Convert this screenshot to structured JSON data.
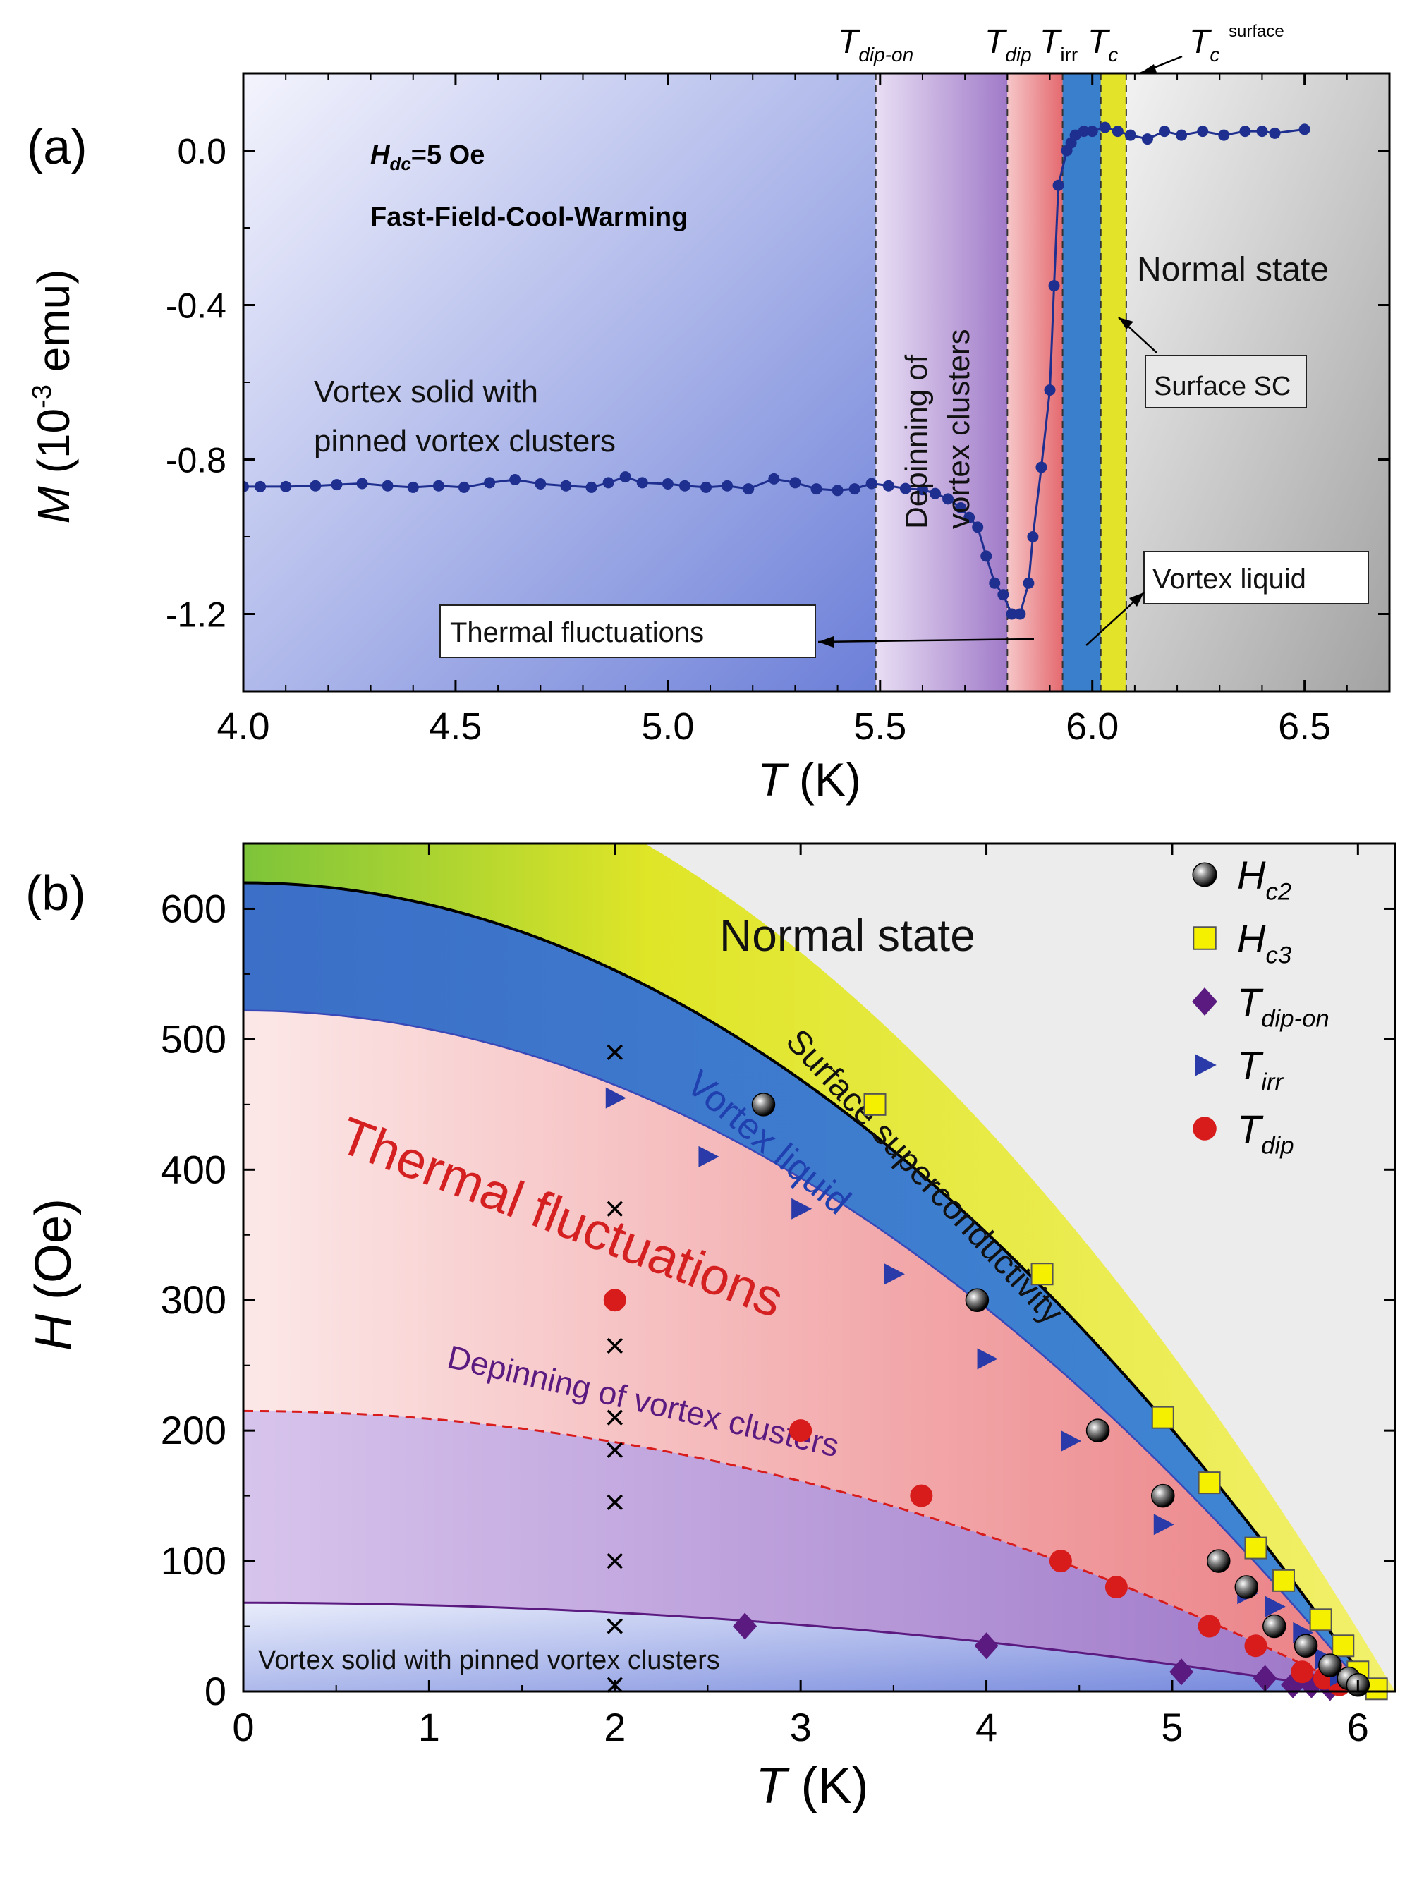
{
  "figure": {
    "colors": {
      "axis": "#000000",
      "series_blue": "#1f2f8f",
      "solid_region": "#6f80d8",
      "depin_region": "#a884cc",
      "thermal_region": "#ef9a9a",
      "liquid_region": "#3a7fcc",
      "surface_region": "#e3e32a",
      "normal_region": "#a9a9a9",
      "normal_bg_b": "#ececec",
      "red_marker": "#d81b1b",
      "purple_marker": "#5b1a80",
      "blue_marker": "#2a3aa8",
      "yellow_marker": "#f5f000",
      "label_red": "#d42020",
      "label_blue": "#2040b0",
      "label_purple": "#5b1a80"
    }
  },
  "chart_data": [
    {
      "type": "scatter",
      "panel_label": "(a)",
      "xlabel": "T",
      "xlabel_unit": "(K)",
      "ylabel": "M",
      "ylabel_unit_pre": "(10",
      "ylabel_unit_exp": "-3",
      "ylabel_unit_post": " emu)",
      "xlim": [
        4.0,
        6.7
      ],
      "ylim": [
        -1.4,
        0.2
      ],
      "xticks": [
        {
          "v": 4.0,
          "label": "4.0"
        },
        {
          "v": 4.5,
          "label": "4.5"
        },
        {
          "v": 5.0,
          "label": "5.0"
        },
        {
          "v": 5.5,
          "label": "5.5"
        },
        {
          "v": 6.0,
          "label": "6.0"
        },
        {
          "v": 6.5,
          "label": "6.5"
        }
      ],
      "yticks": [
        {
          "v": 0.0,
          "label": "0.0"
        },
        {
          "v": -0.4,
          "label": "-0.4"
        },
        {
          "v": -0.8,
          "label": "-0.8"
        },
        {
          "v": -1.2,
          "label": "-1.2"
        }
      ],
      "condition_h_main": "H",
      "condition_h_sub": "dc",
      "condition_h_rest": "=5 Oe",
      "condition_protocol": "Fast-Field-Cool-Warming",
      "region_boundaries": {
        "t_dip_on": 5.49,
        "t_dip": 5.8,
        "t_irr": 5.93,
        "t_c": 6.02,
        "t_c_surface": 6.08
      },
      "top_labels": {
        "t_dip_on_main": "T",
        "t_dip_on_sub": "dip-on",
        "t_dip_main": "T",
        "t_dip_sub": "dip",
        "t_irr_main": "T",
        "t_irr_sub": "irr",
        "t_c_main": "T",
        "t_c_sub": "c",
        "t_c_surface_main": "T",
        "t_c_surface_sub": "c",
        "t_c_surface_sup": "surface"
      },
      "annotations": {
        "vortex_solid_line1": "Vortex solid with",
        "vortex_solid_line2": "pinned vortex clusters",
        "depinning_line1": "Depinning of",
        "depinning_line2": "vortex clusters",
        "normal_state": "Normal state",
        "surface_sc": "Surface SC",
        "thermal_fluctuations": "Thermal fluctuations",
        "vortex_liquid": "Vortex liquid"
      },
      "series": [
        {
          "name": "M(T)",
          "points": [
            [
              4.0,
              -0.87
            ],
            [
              4.04,
              -0.87
            ],
            [
              4.1,
              -0.87
            ],
            [
              4.17,
              -0.868
            ],
            [
              4.22,
              -0.865
            ],
            [
              4.28,
              -0.862
            ],
            [
              4.34,
              -0.868
            ],
            [
              4.4,
              -0.872
            ],
            [
              4.46,
              -0.868
            ],
            [
              4.52,
              -0.872
            ],
            [
              4.58,
              -0.86
            ],
            [
              4.64,
              -0.852
            ],
            [
              4.7,
              -0.863
            ],
            [
              4.76,
              -0.868
            ],
            [
              4.82,
              -0.872
            ],
            [
              4.86,
              -0.86
            ],
            [
              4.9,
              -0.845
            ],
            [
              4.94,
              -0.86
            ],
            [
              5.0,
              -0.863
            ],
            [
              5.04,
              -0.868
            ],
            [
              5.09,
              -0.872
            ],
            [
              5.14,
              -0.868
            ],
            [
              5.19,
              -0.876
            ],
            [
              5.25,
              -0.85
            ],
            [
              5.3,
              -0.86
            ],
            [
              5.35,
              -0.876
            ],
            [
              5.4,
              -0.88
            ],
            [
              5.44,
              -0.876
            ],
            [
              5.48,
              -0.862
            ],
            [
              5.52,
              -0.868
            ],
            [
              5.56,
              -0.875
            ],
            [
              5.6,
              -0.878
            ],
            [
              5.63,
              -0.888
            ],
            [
              5.66,
              -0.902
            ],
            [
              5.69,
              -0.925
            ],
            [
              5.71,
              -0.95
            ],
            [
              5.73,
              -0.975
            ],
            [
              5.75,
              -1.05
            ],
            [
              5.77,
              -1.12
            ],
            [
              5.79,
              -1.15
            ],
            [
              5.81,
              -1.2
            ],
            [
              5.83,
              -1.2
            ],
            [
              5.85,
              -1.12
            ],
            [
              5.86,
              -1.0
            ],
            [
              5.88,
              -0.82
            ],
            [
              5.9,
              -0.62
            ],
            [
              5.91,
              -0.35
            ],
            [
              5.92,
              -0.09
            ],
            [
              5.94,
              0.0
            ],
            [
              5.95,
              0.02
            ],
            [
              5.96,
              0.04
            ],
            [
              5.98,
              0.05
            ],
            [
              6.0,
              0.05
            ],
            [
              6.03,
              0.06
            ],
            [
              6.06,
              0.05
            ],
            [
              6.09,
              0.04
            ],
            [
              6.13,
              0.03
            ],
            [
              6.17,
              0.05
            ],
            [
              6.21,
              0.04
            ],
            [
              6.26,
              0.05
            ],
            [
              6.31,
              0.04
            ],
            [
              6.36,
              0.05
            ],
            [
              6.4,
              0.05
            ],
            [
              6.43,
              0.045
            ],
            [
              6.5,
              0.055
            ]
          ]
        }
      ]
    },
    {
      "type": "scatter",
      "panel_label": "(b)",
      "xlabel": "T",
      "xlabel_unit": "(K)",
      "ylabel": "H",
      "ylabel_unit": "(Oe)",
      "xlim": [
        0,
        6.2
      ],
      "ylim": [
        0,
        650
      ],
      "xticks": [
        {
          "v": 0,
          "label": "0"
        },
        {
          "v": 1,
          "label": "1"
        },
        {
          "v": 2,
          "label": "2"
        },
        {
          "v": 3,
          "label": "3"
        },
        {
          "v": 4,
          "label": "4"
        },
        {
          "v": 5,
          "label": "5"
        },
        {
          "v": 6,
          "label": "6"
        }
      ],
      "yticks": [
        {
          "v": 0,
          "label": "0"
        },
        {
          "v": 100,
          "label": "100"
        },
        {
          "v": 200,
          "label": "200"
        },
        {
          "v": 300,
          "label": "300"
        },
        {
          "v": 400,
          "label": "400"
        },
        {
          "v": 500,
          "label": "500"
        },
        {
          "v": 600,
          "label": "600"
        }
      ],
      "model": {
        "tc2": 6.08,
        "h_c2_0": 620,
        "t_irr": 6.05,
        "h_irr_0": 522,
        "t_dip": 6.0,
        "h_dip_0": 215,
        "t_dip_on": 6.0,
        "h_dip_on_0": 68,
        "tc3": 6.2,
        "h_c3_0": 740
      },
      "region_labels": {
        "normal_state": "Normal state",
        "surface_sc": "Surface superconductivity",
        "vortex_liquid": "Vortex liquid",
        "thermal_fluctuations": "Thermal fluctuations",
        "depinning": "Depinning of vortex clusters",
        "vortex_solid": "Vortex solid with pinned vortex clusters"
      },
      "legend": {
        "position": "top-right",
        "entries": [
          {
            "key": "hc2",
            "main": "H",
            "sub": "c2"
          },
          {
            "key": "hc3",
            "main": "H",
            "sub": "c3"
          },
          {
            "key": "tdipon",
            "main": "T",
            "sub": "dip-on"
          },
          {
            "key": "tirr",
            "main": "T",
            "sub": "irr"
          },
          {
            "key": "tdip",
            "main": "T",
            "sub": "dip"
          }
        ]
      },
      "series": [
        {
          "name": "Hc2",
          "key": "hc2",
          "marker": "sphere",
          "points": [
            [
              2.8,
              450
            ],
            [
              3.95,
              300
            ],
            [
              4.6,
              200
            ],
            [
              4.95,
              150
            ],
            [
              5.25,
              100
            ],
            [
              5.4,
              80
            ],
            [
              5.55,
              50
            ],
            [
              5.72,
              35
            ],
            [
              5.85,
              20
            ],
            [
              5.95,
              10
            ],
            [
              6.0,
              5
            ]
          ]
        },
        {
          "name": "Hc3",
          "key": "hc3",
          "marker": "square",
          "points": [
            [
              3.4,
              450
            ],
            [
              4.3,
              320
            ],
            [
              4.95,
              210
            ],
            [
              5.2,
              160
            ],
            [
              5.45,
              110
            ],
            [
              5.6,
              85
            ],
            [
              5.8,
              55
            ],
            [
              5.92,
              35
            ],
            [
              6.0,
              15
            ],
            [
              6.1,
              2
            ]
          ]
        },
        {
          "name": "T_dip-on",
          "key": "tdipon",
          "marker": "diamond",
          "points": [
            [
              2.7,
              50
            ],
            [
              4.0,
              35
            ],
            [
              5.05,
              15
            ],
            [
              5.5,
              10
            ],
            [
              5.65,
              5
            ],
            [
              5.75,
              5
            ],
            [
              5.85,
              3
            ]
          ]
        },
        {
          "name": "T_irr",
          "key": "tirr",
          "marker": "triangle",
          "points": [
            [
              2.0,
              455
            ],
            [
              2.5,
              410
            ],
            [
              3.0,
              370
            ],
            [
              3.5,
              320
            ],
            [
              4.0,
              255
            ],
            [
              4.45,
              192
            ],
            [
              4.95,
              128
            ],
            [
              5.4,
              75
            ],
            [
              5.55,
              65
            ],
            [
              5.7,
              45
            ],
            [
              5.82,
              25
            ],
            [
              5.9,
              12
            ]
          ]
        },
        {
          "name": "T_dip",
          "key": "tdip",
          "marker": "circle",
          "points": [
            [
              2.0,
              300
            ],
            [
              3.0,
              200
            ],
            [
              3.65,
              150
            ],
            [
              4.4,
              100
            ],
            [
              4.7,
              80
            ],
            [
              5.2,
              50
            ],
            [
              5.45,
              35
            ],
            [
              5.7,
              15
            ],
            [
              5.82,
              10
            ],
            [
              5.9,
              5
            ]
          ]
        },
        {
          "name": "measurement_fields",
          "key": "cross",
          "marker": "cross",
          "points": [
            [
              2,
              490
            ],
            [
              2,
              370
            ],
            [
              2,
              300
            ],
            [
              2,
              265
            ],
            [
              2,
              210
            ],
            [
              2,
              185
            ],
            [
              2,
              145
            ],
            [
              2,
              100
            ],
            [
              2,
              50
            ],
            [
              2,
              5
            ]
          ]
        }
      ]
    }
  ]
}
